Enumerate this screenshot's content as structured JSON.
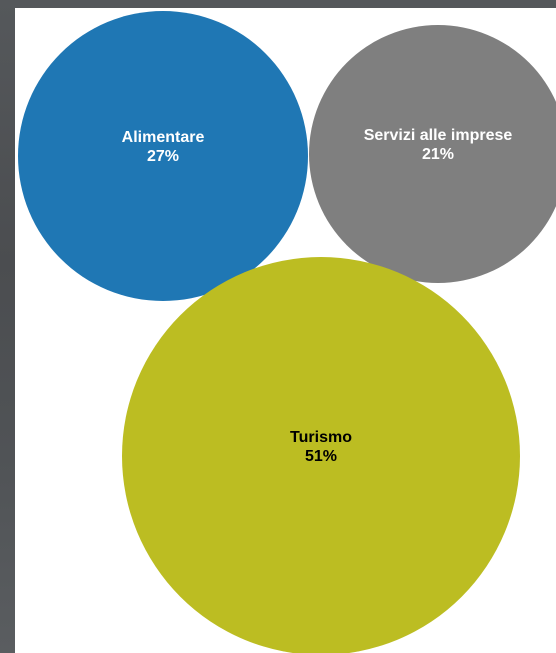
{
  "chart_data": {
    "type": "bubble",
    "series": [
      {
        "name": "Alimentare",
        "value": 27,
        "value_label": "27%",
        "color": "#1f77b4",
        "label_color": "#ffffff"
      },
      {
        "name": "Servizi alle imprese",
        "value": 21,
        "value_label": "21%",
        "color": "#7f7f7f",
        "label_color": "#ffffff"
      },
      {
        "name": "Turismo",
        "value": 51,
        "value_label": "51%",
        "color": "#bcbd22",
        "label_color": "#000000"
      }
    ]
  }
}
